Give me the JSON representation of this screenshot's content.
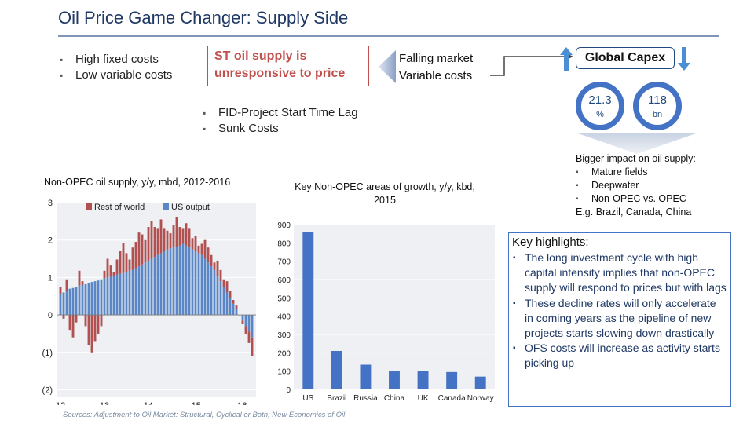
{
  "slide": {
    "title": "Oil Price Game Changer: Supply Side",
    "left_bullets": [
      "High fixed costs",
      "Low variable costs"
    ],
    "st_box": {
      "line1": "ST oil supply is",
      "line2": "unresponsive to price"
    },
    "falling": {
      "line1": "Falling market",
      "line2": "Variable costs"
    },
    "mid_bullets": [
      "FID-Project Start Time Lag",
      "Sunk Costs"
    ],
    "capex": {
      "label": "Global Capex",
      "ring1": {
        "value": "21.3",
        "unit": "%"
      },
      "ring2": {
        "value": "118",
        "unit": "bn"
      }
    },
    "impact": {
      "heading": "Bigger impact on oil supply:",
      "items": [
        "Mature fields",
        "Deepwater",
        "Non-OPEC vs. OPEC"
      ],
      "example": "E.g. Brazil, Canada, China"
    },
    "key_highlights": {
      "title": "Key highlights:",
      "items": [
        "The long investment cycle with high capital intensity implies that non-OPEC supply will respond to prices but with lags",
        "These decline rates will only accelerate in coming years as the pipeline of new projects starts slowing down drastically",
        "OFS costs will increase as activity starts picking up"
      ]
    },
    "source": "Sources: Adjustment to Oil Market: Structural, Cyclical or Both; New Economics of Oil"
  },
  "colors": {
    "title": "#1f3864",
    "accent_red": "#c0504d",
    "accent_blue": "#4472c4",
    "us_bar": "#5b86c6",
    "row_bar": "#b05050"
  },
  "chart_data": [
    {
      "type": "bar",
      "title": "Non-OPEC oil supply, y/y, mbd, 2012-2016",
      "legend": [
        "Rest of world",
        "US output"
      ],
      "legend_position": "top",
      "y_ticks": [
        "3",
        "2",
        "1",
        "0",
        "(1)",
        "(2)"
      ],
      "x_ticks": [
        "12",
        "13",
        "14",
        "15",
        "16"
      ],
      "ylim": [
        -2.2,
        3
      ],
      "series": [
        {
          "name": "US output",
          "values": [
            0.55,
            0.6,
            0.65,
            0.7,
            0.72,
            0.75,
            0.78,
            0.8,
            0.82,
            0.85,
            0.88,
            0.9,
            0.92,
            0.95,
            0.98,
            1.0,
            1.02,
            1.05,
            1.08,
            1.1,
            1.12,
            1.15,
            1.18,
            1.2,
            1.25,
            1.3,
            1.35,
            1.4,
            1.45,
            1.5,
            1.55,
            1.6,
            1.65,
            1.7,
            1.75,
            1.78,
            1.8,
            1.82,
            1.85,
            1.9,
            1.85,
            1.8,
            1.75,
            1.7,
            1.65,
            1.6,
            1.5,
            1.4,
            1.3,
            1.2,
            1.05,
            0.9,
            0.75,
            0.6,
            0.45,
            0.3,
            0.15,
            0.0,
            -0.15,
            -0.3,
            -0.45,
            -0.6
          ]
        },
        {
          "name": "Rest of world",
          "values": [
            0.2,
            -0.1,
            0.3,
            -0.4,
            -0.6,
            -0.2,
            0.4,
            0.1,
            -0.3,
            -0.8,
            -1.0,
            -0.7,
            -0.5,
            -0.3,
            0.2,
            0.5,
            0.3,
            0.1,
            0.4,
            0.6,
            0.8,
            0.5,
            0.3,
            0.6,
            0.7,
            0.9,
            0.8,
            0.6,
            0.9,
            1.0,
            0.8,
            0.7,
            0.9,
            0.6,
            0.5,
            0.4,
            0.6,
            0.8,
            0.5,
            0.4,
            0.6,
            0.5,
            0.3,
            0.4,
            0.2,
            0.3,
            0.5,
            0.4,
            0.3,
            0.2,
            0.4,
            0.3,
            0.2,
            0.3,
            0.2,
            0.1,
            0.1,
            0.0,
            -0.1,
            -0.2,
            -0.3,
            -0.5
          ]
        }
      ]
    },
    {
      "type": "bar",
      "title": "Key Non-OPEC areas of growth, y/y, kbd, 2015",
      "categories": [
        "US",
        "Brazil",
        "Russia",
        "China",
        "UK",
        "Canada",
        "Norway"
      ],
      "values": [
        860,
        210,
        135,
        100,
        100,
        95,
        70
      ],
      "ylim": [
        0,
        900
      ],
      "y_ticks": [
        "900",
        "800",
        "700",
        "600",
        "500",
        "400",
        "300",
        "200",
        "100",
        "0"
      ]
    }
  ]
}
